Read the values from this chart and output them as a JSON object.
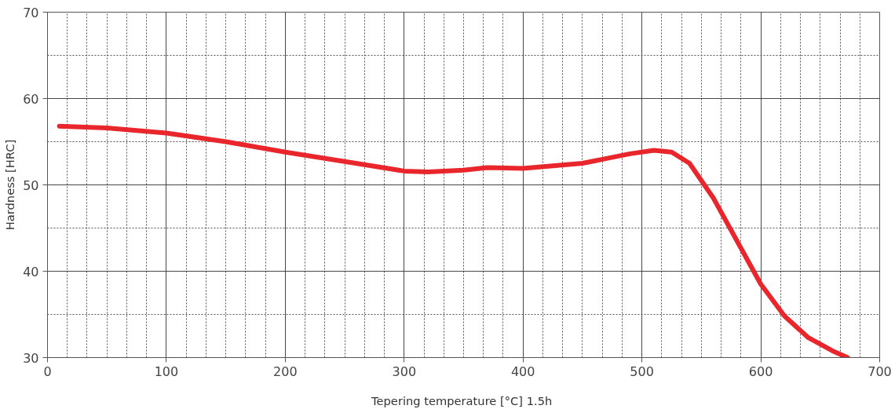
{
  "chart_data": {
    "type": "line",
    "xlabel": "Tepering temperature [°C]  1.5h",
    "ylabel": "Hardness [HRC]",
    "x": [
      10,
      50,
      100,
      150,
      200,
      250,
      300,
      320,
      350,
      370,
      400,
      450,
      490,
      510,
      525,
      540,
      560,
      580,
      600,
      620,
      640,
      660,
      673
    ],
    "series": [
      {
        "color": "#e8262b",
        "values": [
          56.8,
          56.6,
          56.0,
          55.0,
          53.8,
          52.7,
          51.6,
          51.5,
          51.7,
          52.0,
          51.9,
          52.5,
          53.6,
          54.0,
          53.8,
          52.5,
          48.5,
          43.5,
          38.5,
          34.8,
          32.3,
          30.8,
          30.0
        ]
      }
    ],
    "xlim": [
      0,
      700
    ],
    "ylim": [
      30,
      70
    ],
    "xticks": [
      0,
      100,
      200,
      300,
      400,
      500,
      600,
      700
    ],
    "yticks": [
      30,
      40,
      50,
      60,
      70
    ],
    "grid": true,
    "marker": "none",
    "line_style": "solid"
  }
}
